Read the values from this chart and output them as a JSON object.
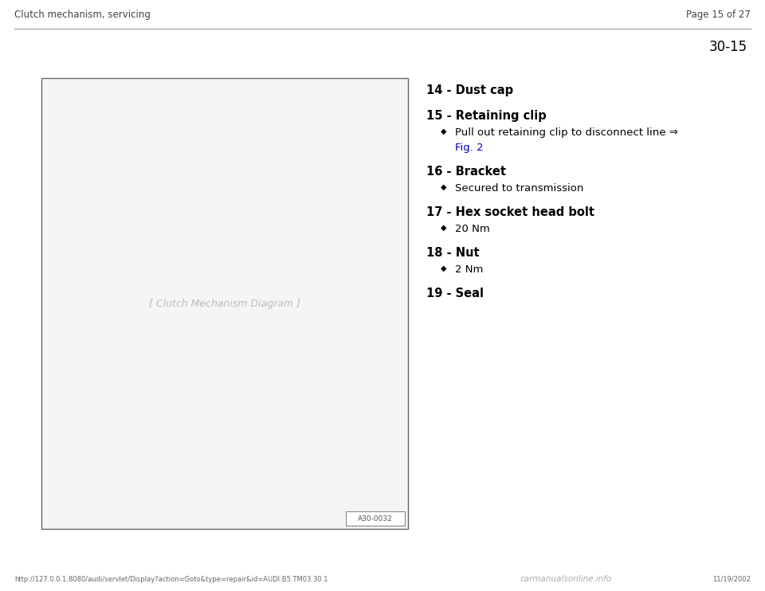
{
  "bg_color": "#ffffff",
  "header_left": "Clutch mechanism, servicing",
  "header_right": "Page 15 of 27",
  "section_number": "30-15",
  "footer_url": "http://127.0.0.1:8080/audi/servlet/Display?action=Goto&type=repair&id=AUDI.B5.TM03.30.1",
  "footer_date": "11/19/2002",
  "footer_watermark": "carmanualsonline.info",
  "items": [
    {
      "num": "14",
      "title": "Dust cap",
      "subs": []
    },
    {
      "num": "15",
      "title": "Retaining clip",
      "subs": [
        {
          "text": "Pull out retaining clip to disconnect line ⇒",
          "link": "Fig. 2",
          "link_color": "#0000cc"
        }
      ]
    },
    {
      "num": "16",
      "title": "Bracket",
      "subs": [
        {
          "text": "Secured to transmission",
          "link": null,
          "link_color": null
        }
      ]
    },
    {
      "num": "17",
      "title": "Hex socket head bolt",
      "subs": [
        {
          "text": "20 Nm",
          "link": null,
          "link_color": null
        }
      ]
    },
    {
      "num": "18",
      "title": "Nut",
      "subs": [
        {
          "text": "2 Nm",
          "link": null,
          "link_color": null
        }
      ]
    },
    {
      "num": "19",
      "title": "Seal",
      "subs": []
    }
  ]
}
